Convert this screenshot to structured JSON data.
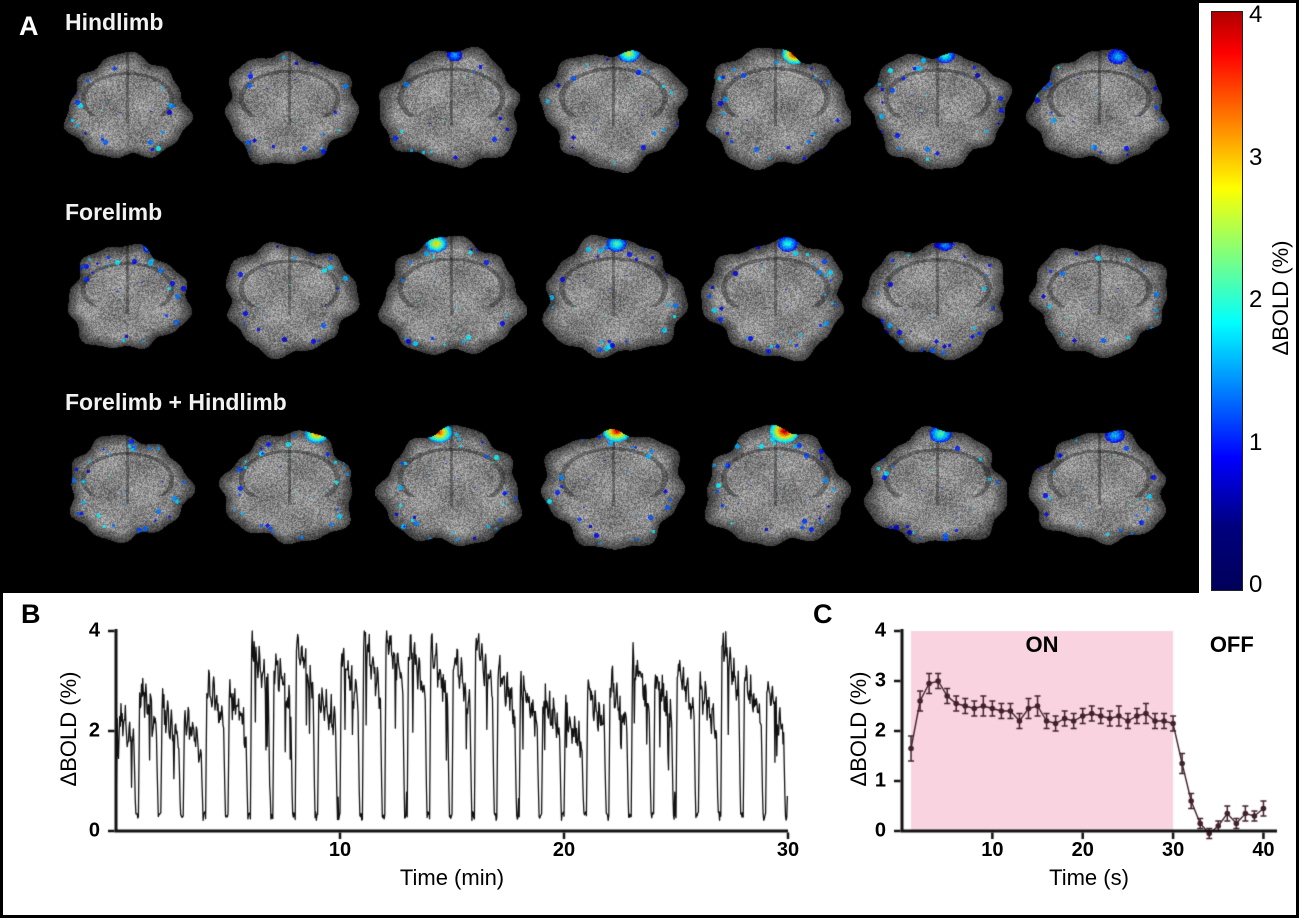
{
  "figure": {
    "panelA": {
      "label": "A",
      "rows": [
        {
          "label": "Hindlimb",
          "slices": [
            {
              "hot": null
            },
            {
              "hot": null
            },
            {
              "hot": {
                "x": 0.52,
                "y": 0.13,
                "s": 0.32,
                "r": 8
              }
            },
            {
              "hot": {
                "x": 0.6,
                "y": 0.12,
                "s": 0.62,
                "r": 11
              }
            },
            {
              "hot": {
                "x": 0.63,
                "y": 0.12,
                "s": 1.0,
                "r": 13
              }
            },
            {
              "hot": {
                "x": 0.55,
                "y": 0.13,
                "s": 0.45,
                "r": 10
              }
            },
            {
              "hot": {
                "x": 0.62,
                "y": 0.14,
                "s": 0.34,
                "r": 10
              }
            }
          ]
        },
        {
          "label": "Forelimb",
          "slices": [
            {
              "hot": {
                "x": 0.66,
                "y": 0.14,
                "s": 0.5,
                "r": 9
              }
            },
            {
              "hot": {
                "x": 0.68,
                "y": 0.13,
                "s": 0.66,
                "r": 11
              }
            },
            {
              "hot": {
                "x": 0.4,
                "y": 0.12,
                "s": 0.7,
                "r": 11
              }
            },
            {
              "hot": {
                "x": 0.52,
                "y": 0.12,
                "s": 0.5,
                "r": 10
              }
            },
            {
              "hot": {
                "x": 0.58,
                "y": 0.12,
                "s": 0.45,
                "r": 10
              }
            },
            {
              "hot": {
                "x": 0.55,
                "y": 0.13,
                "s": 0.3,
                "r": 8
              }
            },
            {
              "hot": null
            }
          ]
        },
        {
          "label": "Forelimb + Hindlimb",
          "slices": [
            {
              "hot": {
                "x": 0.66,
                "y": 0.14,
                "s": 0.6,
                "r": 10
              }
            },
            {
              "hot": {
                "x": 0.68,
                "y": 0.12,
                "s": 0.8,
                "r": 12
              }
            },
            {
              "hot": {
                "x": 0.42,
                "y": 0.11,
                "s": 0.85,
                "r": 13
              }
            },
            {
              "hot": {
                "x": 0.52,
                "y": 0.1,
                "s": 0.95,
                "r": 14
              }
            },
            {
              "hot": {
                "x": 0.56,
                "y": 0.1,
                "s": 1.0,
                "r": 15
              }
            },
            {
              "hot": {
                "x": 0.52,
                "y": 0.12,
                "s": 0.5,
                "r": 11
              }
            },
            {
              "hot": {
                "x": 0.6,
                "y": 0.13,
                "s": 0.35,
                "r": 10
              }
            }
          ]
        }
      ],
      "colorbar": {
        "label": "ΔBOLD (%)",
        "min": 0,
        "max": 4,
        "colormap": "jet",
        "ticks": [
          {
            "v": 4,
            "label": "4"
          },
          {
            "v": 3,
            "label": "3"
          },
          {
            "v": 2,
            "label": "2"
          },
          {
            "v": 1,
            "label": "1"
          },
          {
            "v": 0,
            "label": "0"
          }
        ]
      }
    },
    "panelB": {
      "label": "B"
    },
    "panelC": {
      "label": "C"
    }
  },
  "chart_data": [
    {
      "type": "line",
      "panel": "B",
      "xlabel": "Time (min)",
      "ylabel": "ΔBOLD (%)",
      "xlim": [
        0,
        30
      ],
      "ylim": [
        0,
        4
      ],
      "xticks": [
        10,
        20,
        30
      ],
      "yticks": [
        0,
        2,
        4
      ],
      "line_color": "#111111",
      "description": "Block-design BOLD time course over 30 min, ~1-min stimulation cycles; jagged plateaus between ~2 and 4% with sharp troughs near baseline ~0.3%",
      "baseline": 0.3,
      "cycle_peaks": [
        2.4,
        2.9,
        2.5,
        2.3,
        3.0,
        2.8,
        3.9,
        3.4,
        3.9,
        2.9,
        3.5,
        3.9,
        4.0,
        3.8,
        3.7,
        3.5,
        3.9,
        3.3,
        3.0,
        2.7,
        2.4,
        2.9,
        3.0,
        3.5,
        3.1,
        3.3,
        2.9,
        3.9,
        3.1,
        2.9
      ]
    },
    {
      "type": "scatter",
      "panel": "C",
      "xlabel": "Time (s)",
      "ylabel": "ΔBOLD (%)",
      "xlim": [
        0,
        41.5
      ],
      "ylim": [
        0,
        4
      ],
      "xticks": [
        10,
        20,
        30,
        40
      ],
      "yticks": [
        0,
        1,
        2,
        3,
        4
      ],
      "marker_color": "#40212c",
      "stim_on": {
        "start": 1,
        "end": 30,
        "label": "ON",
        "color": "#f9d4e0"
      },
      "annotations": [
        {
          "text": "ON",
          "x": 15.5,
          "y": 3.72
        },
        {
          "text": "OFF",
          "x": 36.5,
          "y": 3.72
        }
      ],
      "x": [
        1,
        2,
        3,
        4,
        5,
        6,
        7,
        8,
        9,
        10,
        11,
        12,
        13,
        14,
        15,
        16,
        17,
        18,
        19,
        20,
        21,
        22,
        23,
        24,
        25,
        26,
        27,
        28,
        29,
        30,
        31,
        32,
        33,
        34,
        35,
        36,
        37,
        38,
        39,
        40
      ],
      "y": [
        1.65,
        2.6,
        2.95,
        3.0,
        2.7,
        2.55,
        2.5,
        2.45,
        2.5,
        2.45,
        2.4,
        2.4,
        2.2,
        2.45,
        2.5,
        2.2,
        2.15,
        2.25,
        2.2,
        2.3,
        2.35,
        2.3,
        2.25,
        2.3,
        2.2,
        2.3,
        2.35,
        2.2,
        2.2,
        2.15,
        1.35,
        0.6,
        0.15,
        -0.05,
        0.1,
        0.35,
        0.15,
        0.35,
        0.3,
        0.45
      ],
      "yerr": [
        0.25,
        0.2,
        0.2,
        0.15,
        0.15,
        0.15,
        0.15,
        0.15,
        0.2,
        0.15,
        0.15,
        0.15,
        0.15,
        0.2,
        0.2,
        0.15,
        0.15,
        0.15,
        0.15,
        0.15,
        0.15,
        0.15,
        0.15,
        0.2,
        0.15,
        0.15,
        0.2,
        0.15,
        0.15,
        0.15,
        0.2,
        0.15,
        0.1,
        0.1,
        0.1,
        0.15,
        0.1,
        0.15,
        0.1,
        0.15
      ]
    }
  ]
}
